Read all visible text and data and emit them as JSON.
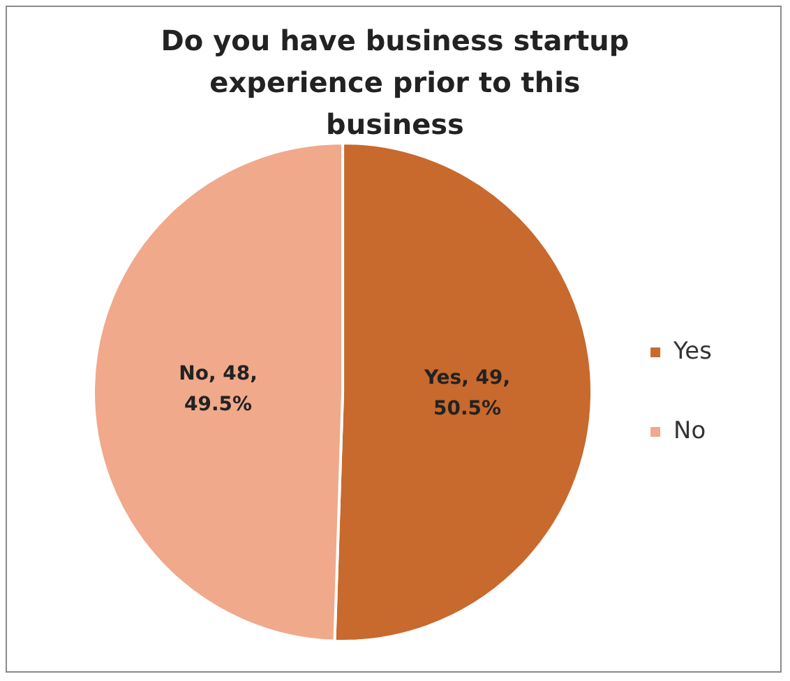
{
  "chart_data": {
    "type": "pie",
    "title": "Do you have business startup experience prior to this business",
    "categories": [
      "Yes",
      "No"
    ],
    "values": [
      49,
      48
    ],
    "colors": [
      "#c8692d",
      "#f0a98b"
    ],
    "value_labels": [
      "Yes, 49, 50.5%",
      "No, 48, 49.5%"
    ],
    "legend": "right"
  }
}
